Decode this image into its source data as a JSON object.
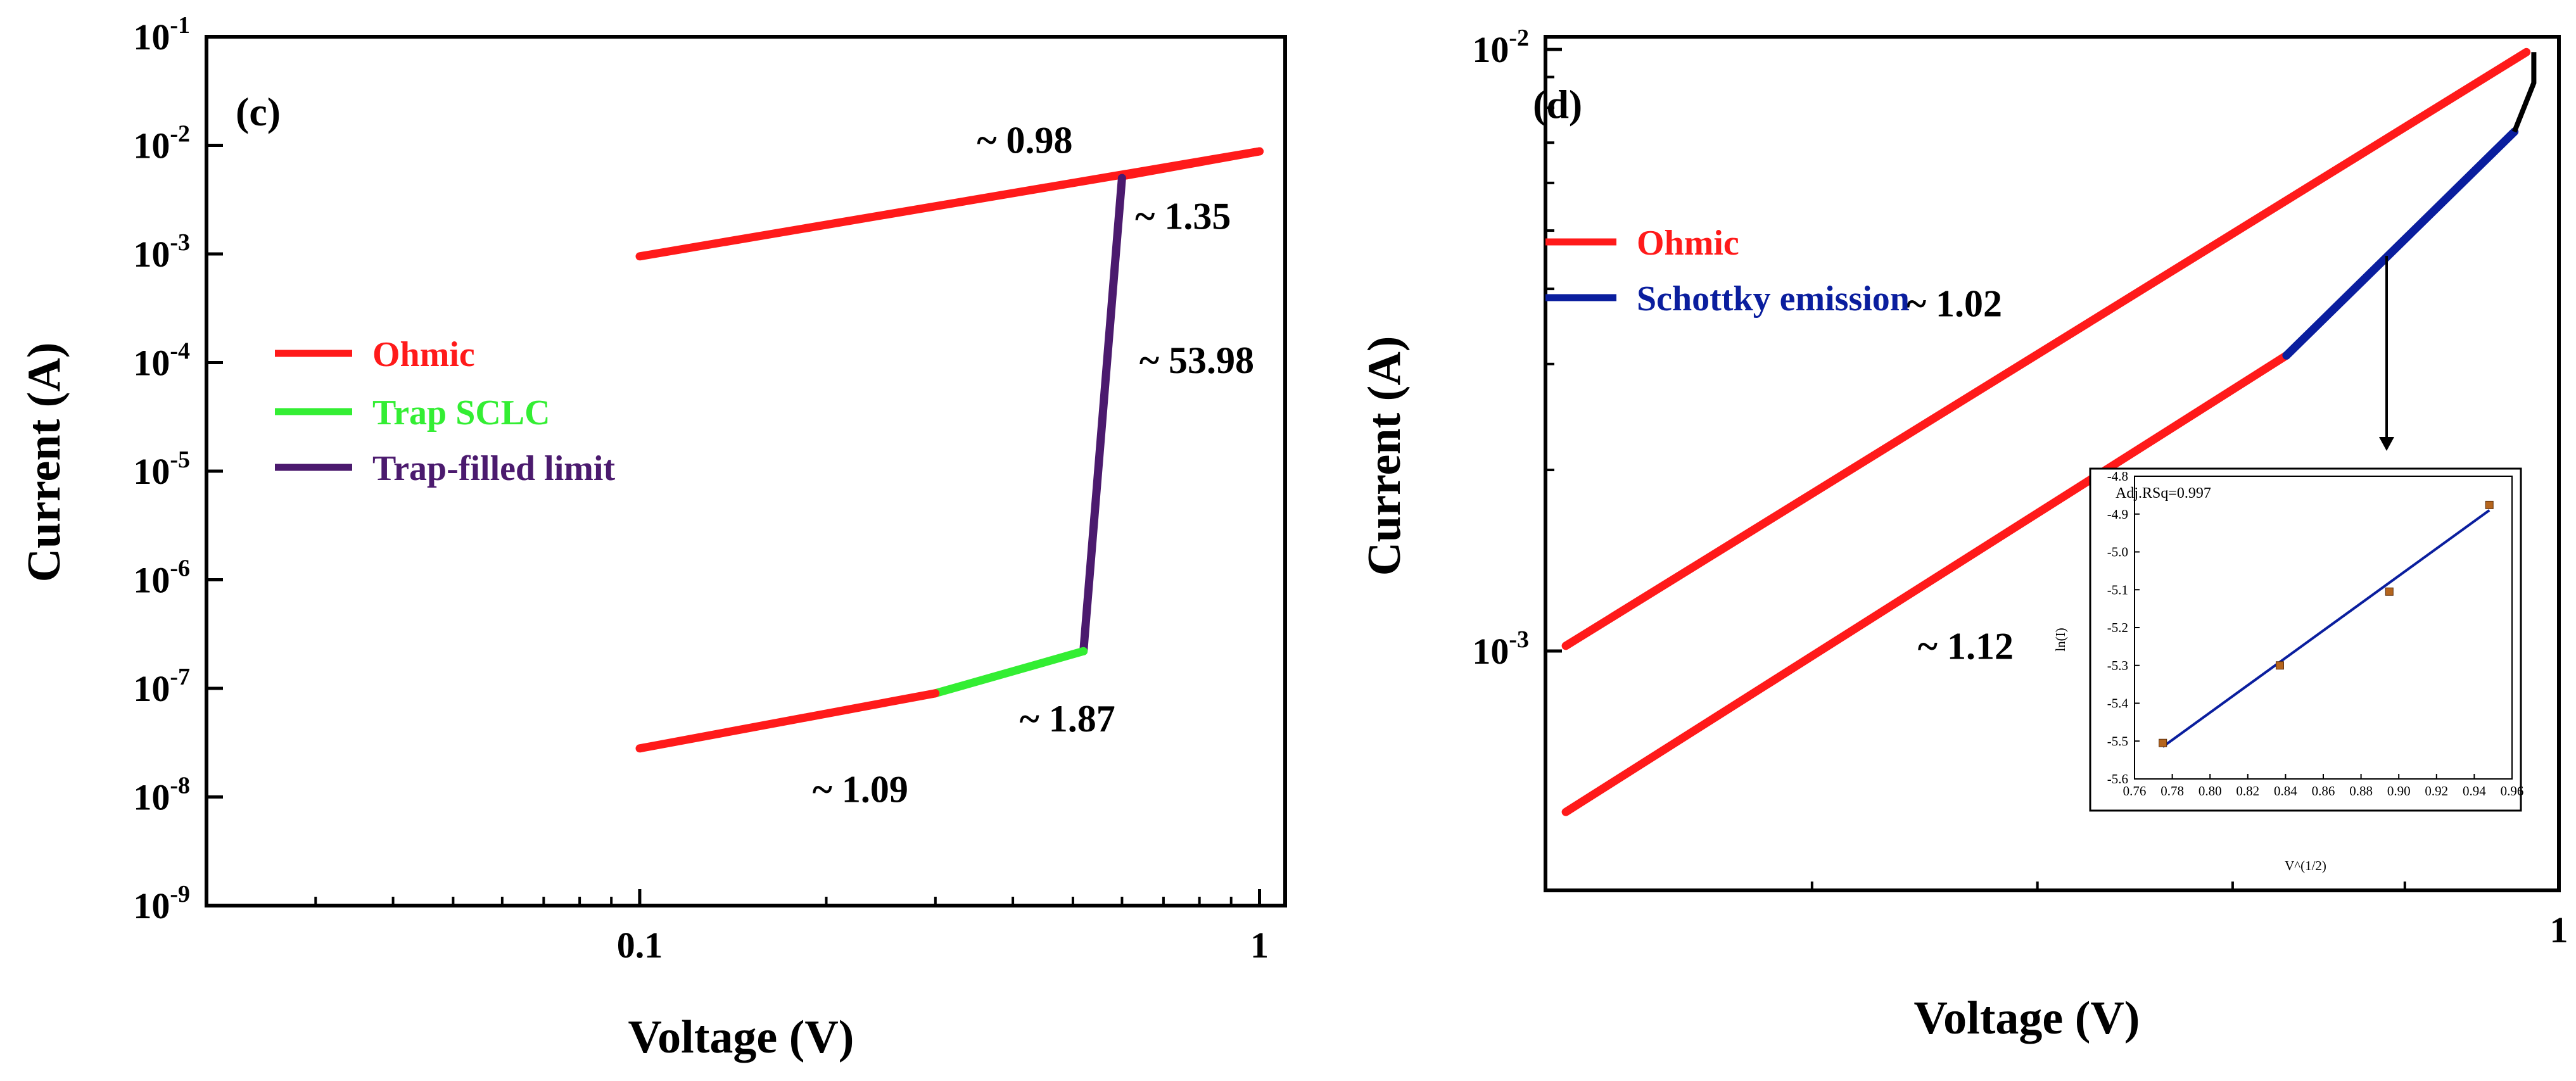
{
  "colors": {
    "ohmic": "#ff1a1a",
    "trap_sclc": "#33ee33",
    "trap_filled": "#4b1a6e",
    "schottky": "#0a1e9e",
    "raw": "#000000",
    "inset_point": "#b5651d"
  },
  "chart_data": [
    {
      "panel": "(c)",
      "type": "line",
      "xscale": "log",
      "yscale": "log",
      "xlim": [
        0.02,
        1.1
      ],
      "ylim": [
        1e-09,
        0.1
      ],
      "xlabel": "Voltage (V)",
      "ylabel": "Current (A)",
      "x_ticks": [
        {
          "value": 0.1,
          "label": "0.1"
        },
        {
          "value": 1,
          "label": "1"
        }
      ],
      "y_ticks": [
        {
          "value": 0.1,
          "base": "10",
          "exp": "-1"
        },
        {
          "value": 0.01,
          "base": "10",
          "exp": "-2"
        },
        {
          "value": 0.001,
          "base": "10",
          "exp": "-3"
        },
        {
          "value": 0.0001,
          "base": "10",
          "exp": "-4"
        },
        {
          "value": 1e-05,
          "base": "10",
          "exp": "-5"
        },
        {
          "value": 1e-06,
          "base": "10",
          "exp": "-6"
        },
        {
          "value": 1e-07,
          "base": "10",
          "exp": "-7"
        },
        {
          "value": 1e-08,
          "base": "10",
          "exp": "-8"
        },
        {
          "value": 1e-09,
          "base": "10",
          "exp": "-9"
        }
      ],
      "legend": [
        {
          "label": "Ohmic",
          "color_key": "ohmic"
        },
        {
          "label": "Trap SCLC",
          "color_key": "trap_sclc"
        },
        {
          "label": "Trap-filled limit",
          "color_key": "trap_filled"
        }
      ],
      "series": [
        {
          "name": "Ohmic (high, ~0.98)",
          "color_key": "ohmic",
          "x": [
            0.1,
            1.0
          ],
          "y": [
            0.00095,
            0.0088
          ]
        },
        {
          "name": "Ohmic (high, ~1.35)",
          "color_key": "ohmic",
          "x": [
            0.6,
            1.0
          ],
          "y": [
            0.0052,
            0.0088
          ]
        },
        {
          "name": "Trap-filled limit",
          "color_key": "trap_filled",
          "x": [
            0.52,
            0.6
          ],
          "y": [
            2.2e-07,
            0.005
          ]
        },
        {
          "name": "Trap SCLC",
          "color_key": "trap_sclc",
          "x": [
            0.3,
            0.52
          ],
          "y": [
            9e-08,
            2.2e-07
          ]
        },
        {
          "name": "Ohmic (low, ~1.09)",
          "color_key": "ohmic",
          "x": [
            0.1,
            0.3
          ],
          "y": [
            2.8e-08,
            9e-08
          ]
        }
      ],
      "annotations": [
        {
          "text": "~ 0.98",
          "x": 0.35,
          "y": 0.0085
        },
        {
          "text": "~ 1.35",
          "x": 0.63,
          "y": 0.0017
        },
        {
          "text": "~ 53.98",
          "x": 0.64,
          "y": 8e-05
        },
        {
          "text": "~ 1.87",
          "x": 0.41,
          "y": 4e-08
        },
        {
          "text": "~ 1.09",
          "x": 0.19,
          "y": 9e-09
        }
      ]
    },
    {
      "panel": "(d)",
      "type": "line",
      "xscale": "log",
      "yscale": "log",
      "xlim": [
        0.5,
        1.0
      ],
      "ylim": [
        0.0004,
        0.0105
      ],
      "xlabel": "Voltage (V)",
      "ylabel": "Current (A)",
      "x_ticks": [
        {
          "value": 1,
          "label": "1"
        }
      ],
      "y_ticks": [
        {
          "value": 0.01,
          "base": "10",
          "exp": "-2"
        },
        {
          "value": 0.001,
          "base": "10",
          "exp": "-3"
        }
      ],
      "legend": [
        {
          "label": "Ohmic",
          "color_key": "ohmic"
        },
        {
          "label": "Schottky emission",
          "color_key": "schottky"
        }
      ],
      "series": [
        {
          "name": "Ohmic (~1.02)",
          "color_key": "ohmic",
          "x": [
            0.507,
            0.978
          ],
          "y": [
            0.00102,
            0.0099
          ]
        },
        {
          "name": "Ohmic (~1.12)",
          "color_key": "ohmic",
          "x": [
            0.507,
            0.83
          ],
          "y": [
            0.00054,
            0.0031
          ]
        },
        {
          "name": "Schottky emission",
          "color_key": "schottky",
          "x": [
            0.83,
            0.97
          ],
          "y": [
            0.0031,
            0.0073
          ]
        }
      ],
      "annotations": [
        {
          "text": "~ 1.02",
          "x": 0.64,
          "y": 0.0036
        },
        {
          "text": "~ 1.12",
          "x": 0.645,
          "y": 0.00097
        }
      ],
      "inset": {
        "xlabel": "V^(1/2)",
        "ylabel": "ln(I)",
        "title": "Adj.RSq=0.997",
        "xlim": [
          0.76,
          0.96
        ],
        "ylim": [
          -5.6,
          -4.8
        ],
        "x_ticks": [
          "0.76",
          "0.78",
          "0.80",
          "0.82",
          "0.84",
          "0.86",
          "0.88",
          "0.90",
          "0.92",
          "0.94",
          "0.96"
        ],
        "y_ticks": [
          "-4.8",
          "-4.9",
          "-5.0",
          "-5.1",
          "-5.2",
          "-5.3",
          "-5.4",
          "-5.5",
          "-5.6"
        ],
        "points": [
          {
            "x": 0.775,
            "y": -5.505
          },
          {
            "x": 0.837,
            "y": -5.3
          },
          {
            "x": 0.895,
            "y": -5.105
          },
          {
            "x": 0.948,
            "y": -4.876
          }
        ],
        "fit": {
          "x": [
            0.775,
            0.948
          ],
          "y": [
            -5.515,
            -4.89
          ]
        }
      }
    }
  ]
}
